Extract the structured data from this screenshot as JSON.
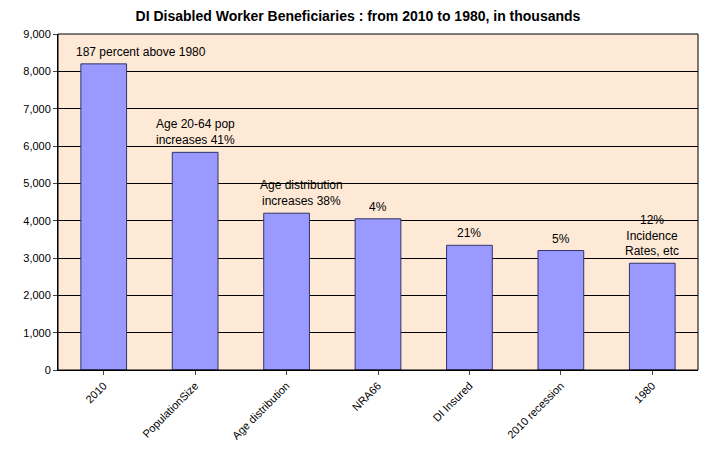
{
  "chart_data": {
    "type": "bar",
    "title": "DI Disabled Worker Beneficiaries : from 2010 to 1980, in thousands",
    "categories": [
      "2010",
      "PopulationSize",
      "Age distribution",
      "NRA66",
      "DI Insured",
      "2010 recession",
      "1980"
    ],
    "values": [
      8200,
      5830,
      4200,
      4050,
      3340,
      3200,
      2860
    ],
    "color": "#9999ff",
    "ylim": [
      0,
      9000
    ],
    "yticks": [
      0,
      {
        "value": 1000,
        "label": "1,000"
      },
      {
        "value": 2000,
        "label": "2,000"
      },
      {
        "value": 3000,
        "label": "3,000"
      },
      {
        "value": 4000,
        "label": "4,000"
      },
      {
        "value": 5000,
        "label": "5,000"
      },
      {
        "value": 6000,
        "label": "6,000"
      },
      {
        "value": 7000,
        "label": "7,000"
      },
      {
        "value": 8000,
        "label": "8,000"
      },
      {
        "value": 9000,
        "label": "9,000"
      }
    ],
    "grid": true,
    "annotations": [
      {
        "category": "2010",
        "text": "187 percent above 1980"
      },
      {
        "category": "PopulationSize",
        "text": "Age 20-64 pop\nincreases 41%"
      },
      {
        "category": "Age distribution",
        "text": "Age distribution\nincreases 38%"
      },
      {
        "category": "NRA66",
        "text": "4%"
      },
      {
        "category": "DI Insured",
        "text": "21%"
      },
      {
        "category": "2010 recession",
        "text": "5%"
      },
      {
        "category": "1980",
        "text": "12%\nIncidence\nRates, etc"
      }
    ]
  }
}
